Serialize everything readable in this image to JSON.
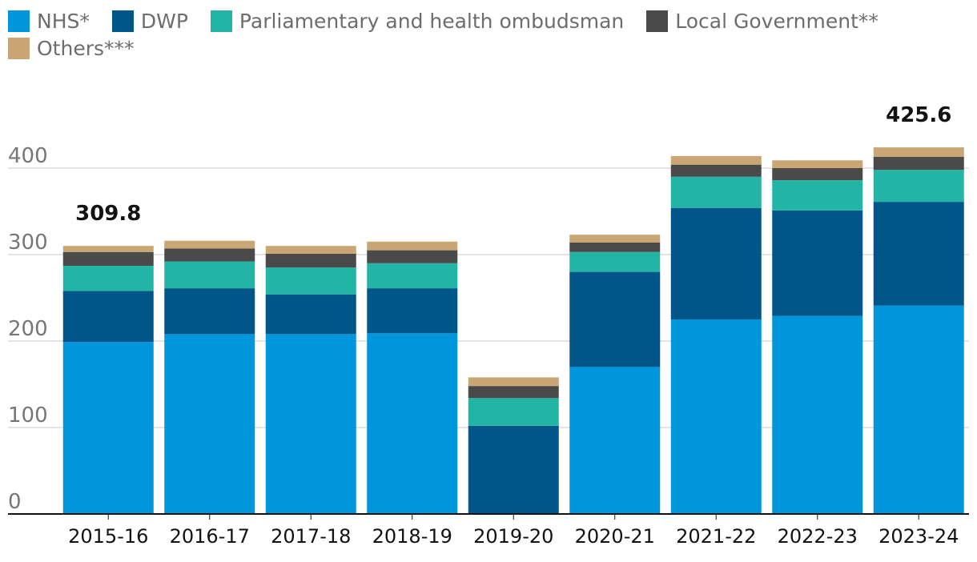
{
  "chart_data": {
    "type": "bar",
    "stacked": true,
    "title": "",
    "xlabel": "",
    "ylabel": "",
    "ylim": [
      0,
      450
    ],
    "yticks": [
      0,
      100,
      200,
      300,
      400
    ],
    "grid": true,
    "legend_position": "top-left",
    "categories": [
      "2015-16",
      "2016-17",
      "2017-18",
      "2018-19",
      "2019-20",
      "2020-21",
      "2021-22",
      "2022-23",
      "2023-24"
    ],
    "series": [
      {
        "name": "NHS*",
        "color": "#0096dc",
        "values": [
          199,
          208,
          208,
          209,
          0,
          170,
          225,
          229,
          241
        ]
      },
      {
        "name": "DWP",
        "color": "#005689",
        "values": [
          59,
          53,
          46,
          52,
          102,
          110,
          129,
          122,
          120
        ]
      },
      {
        "name": "Parliamentary and health ombudsman",
        "color": "#22b5a6",
        "values": [
          29,
          31,
          31,
          29,
          32,
          23,
          36,
          35,
          37
        ]
      },
      {
        "name": "Local Government**",
        "color": "#4a4a4a",
        "values": [
          16,
          15,
          16,
          15,
          14,
          11,
          14,
          14,
          15
        ]
      },
      {
        "name": "Others***",
        "color": "#c9a673",
        "values": [
          7,
          9,
          9,
          10,
          10,
          9,
          10,
          9,
          11
        ]
      }
    ],
    "total_labels": [
      {
        "category": "2015-16",
        "text": "309.8"
      },
      {
        "category": "2023-24",
        "text": "425.6"
      }
    ]
  }
}
